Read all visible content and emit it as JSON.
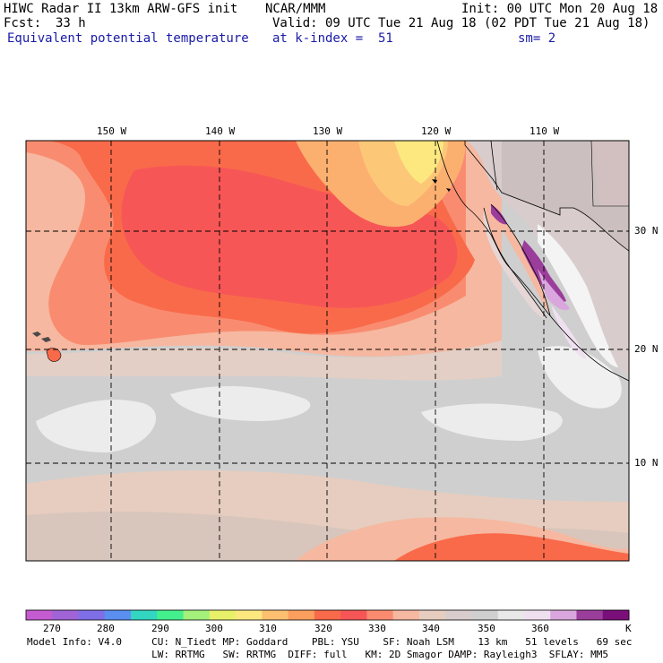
{
  "header": {
    "title": "HIWC Radar II 13km ARW-GFS init",
    "org": "NCAR/MMM",
    "init": "Init: 00 UTC Mon 20 Aug 18",
    "fcst_label": "Fcst:",
    "fcst_value": "33 h",
    "valid": "Valid: 09 UTC Tue 21 Aug 18 (02 PDT Tue 21 Aug 18)",
    "field": "Equivalent potential temperature",
    "level": "at k-index =  51",
    "smoothing": "sm= 2"
  },
  "map": {
    "lon_labels": [
      "150 W",
      "140 W",
      "130 W",
      "120 W",
      "110 W"
    ],
    "lat_labels": [
      "30 N",
      "20 N",
      "10 N"
    ]
  },
  "legend": {
    "unit": "K",
    "labels": [
      "270",
      "280",
      "290",
      "300",
      "310",
      "320",
      "330",
      "340",
      "350",
      "360"
    ],
    "colors": [
      "#c45bd0",
      "#a064d6",
      "#7e6fe6",
      "#5a8ff0",
      "#33d6c0",
      "#44f08c",
      "#a4f07a",
      "#e8f06a",
      "#fde880",
      "#fcc070",
      "#fc9f5e",
      "#f96a4a",
      "#f75656",
      "#f98c70",
      "#f6b8a0",
      "#e6cdbf",
      "#d8cccc",
      "#cfcfcf",
      "#e8e8e8",
      "#efe0ef",
      "#d9a6dd",
      "#9b3d9b",
      "#7a0f7a"
    ]
  },
  "model_info": {
    "line1": "Model Info: V4.0     CU: N_Tiedt MP: Goddard    PBL: YSU    SF: Noah LSM    13 km   51 levels   69 sec",
    "line2": "                     LW: RRTMG   SW: RRTMG  DIFF: full   KM: 2D Smagor DAMP: Rayleigh3  SFLAY: MM5"
  }
}
